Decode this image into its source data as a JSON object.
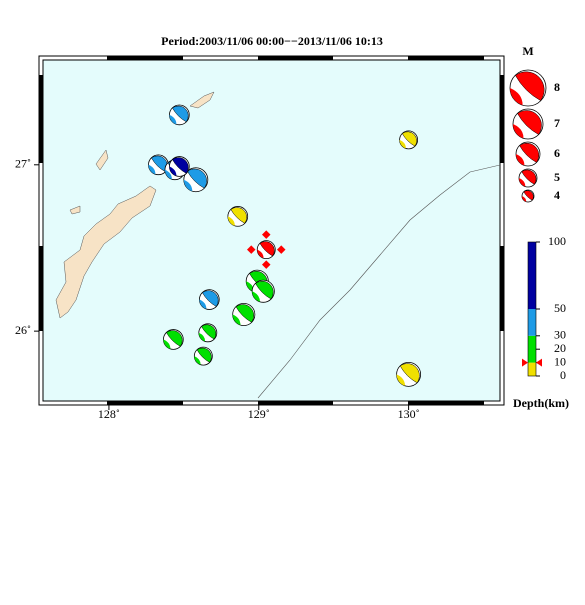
{
  "title": "Period:2003/11/06 00:00−−2013/11/06 10:13",
  "map": {
    "xlim": [
      127.56,
      130.61
    ],
    "ylim": [
      25.58,
      27.63
    ],
    "xticks": [
      {
        "value": 128,
        "label": "128˚"
      },
      {
        "value": 129,
        "label": "129˚"
      },
      {
        "value": 130,
        "label": "130˚"
      }
    ],
    "yticks": [
      {
        "value": 26,
        "label": "26˚"
      },
      {
        "value": 27,
        "label": "27˚"
      }
    ],
    "sea_color": "#e4fcfc",
    "land_color": "#f7e3c6"
  },
  "events": [
    {
      "lon": 128.47,
      "lat": 27.3,
      "mag": 5.3,
      "depth": 40
    },
    {
      "lon": 128.33,
      "lat": 27.0,
      "mag": 5.3,
      "depth": 40
    },
    {
      "lon": 128.44,
      "lat": 26.97,
      "mag": 5.3,
      "depth": 35
    },
    {
      "lon": 128.58,
      "lat": 26.91,
      "mag": 6.0,
      "depth": 40
    },
    {
      "lon": 128.47,
      "lat": 26.99,
      "mag": 5.3,
      "depth": 60
    },
    {
      "lon": 128.86,
      "lat": 26.69,
      "mag": 5.3,
      "depth": 5
    },
    {
      "lon": 128.99,
      "lat": 26.3,
      "mag": 5.7,
      "depth": 20
    },
    {
      "lon": 129.03,
      "lat": 26.24,
      "mag": 5.7,
      "depth": 20
    },
    {
      "lon": 128.67,
      "lat": 26.19,
      "mag": 5.3,
      "depth": 40
    },
    {
      "lon": 128.9,
      "lat": 26.1,
      "mag": 5.7,
      "depth": 20
    },
    {
      "lon": 128.43,
      "lat": 25.95,
      "mag": 5.3,
      "depth": 20
    },
    {
      "lon": 128.66,
      "lat": 25.99,
      "mag": 5.0,
      "depth": 20
    },
    {
      "lon": 128.63,
      "lat": 25.85,
      "mag": 5.0,
      "depth": 20
    },
    {
      "lon": 130.0,
      "lat": 27.15,
      "mag": 5.0,
      "depth": 5
    },
    {
      "lon": 130.0,
      "lat": 25.74,
      "mag": 6.0,
      "depth": 5
    }
  ],
  "main_event": {
    "lon": 129.05,
    "lat": 26.49,
    "mag": 5.0,
    "depth": 10,
    "color": "#ff0000"
  },
  "mag_legend": {
    "title": "M",
    "values": [
      8,
      7,
      6,
      5,
      4
    ]
  },
  "colorbar": {
    "label": "Depth(km)",
    "range": [
      0,
      100
    ],
    "ticks": [
      0,
      10,
      20,
      30,
      50,
      100
    ],
    "bounds": [
      0,
      10,
      30,
      50,
      100
    ],
    "colors": [
      "#f0e000",
      "#00e000",
      "#1e9be6",
      "#0000a0"
    ]
  }
}
